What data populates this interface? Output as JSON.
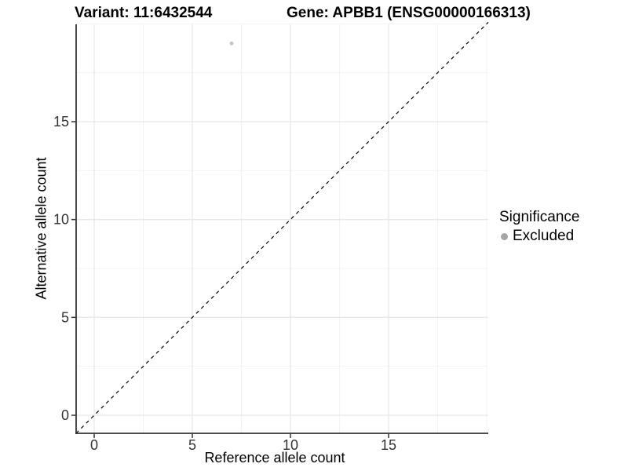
{
  "chart_data": {
    "type": "scatter",
    "title_left": "Variant: 11:6432544",
    "title_right": "Gene: APBB1 (ENSG00000166313)",
    "xlabel": "Reference allele count",
    "ylabel": "Alternative allele count",
    "xlim": [
      -0.92,
      20.08
    ],
    "ylim": [
      -0.92,
      20.08
    ],
    "x_ticks": [
      0,
      5,
      10,
      15
    ],
    "y_ticks": [
      0,
      5,
      10,
      15
    ],
    "x_minor_gridlines": [
      2.5,
      7.5,
      12.5,
      17.5,
      20
    ],
    "y_minor_gridlines": [
      2.5,
      7.5,
      12.5,
      17.5,
      20
    ],
    "grid": true,
    "legend_position": "right",
    "series": [
      {
        "name": "Excluded",
        "color": "#c3c3c3",
        "points": [
          {
            "x": 7,
            "y": 19
          }
        ]
      }
    ],
    "reference_line": {
      "kind": "identity y=x",
      "style": "dashed",
      "color": "#000000"
    },
    "legend": {
      "title": "Significance",
      "entries": [
        {
          "label": "Excluded",
          "color": "#a6a6a6"
        }
      ]
    }
  },
  "style_colors": {
    "background": "#ffffff",
    "grid_major": "#e8e8e8",
    "grid_minor": "#f3f3f3",
    "axis_line": "#333333",
    "tick_label": "#333333",
    "title_text": "#000000"
  }
}
